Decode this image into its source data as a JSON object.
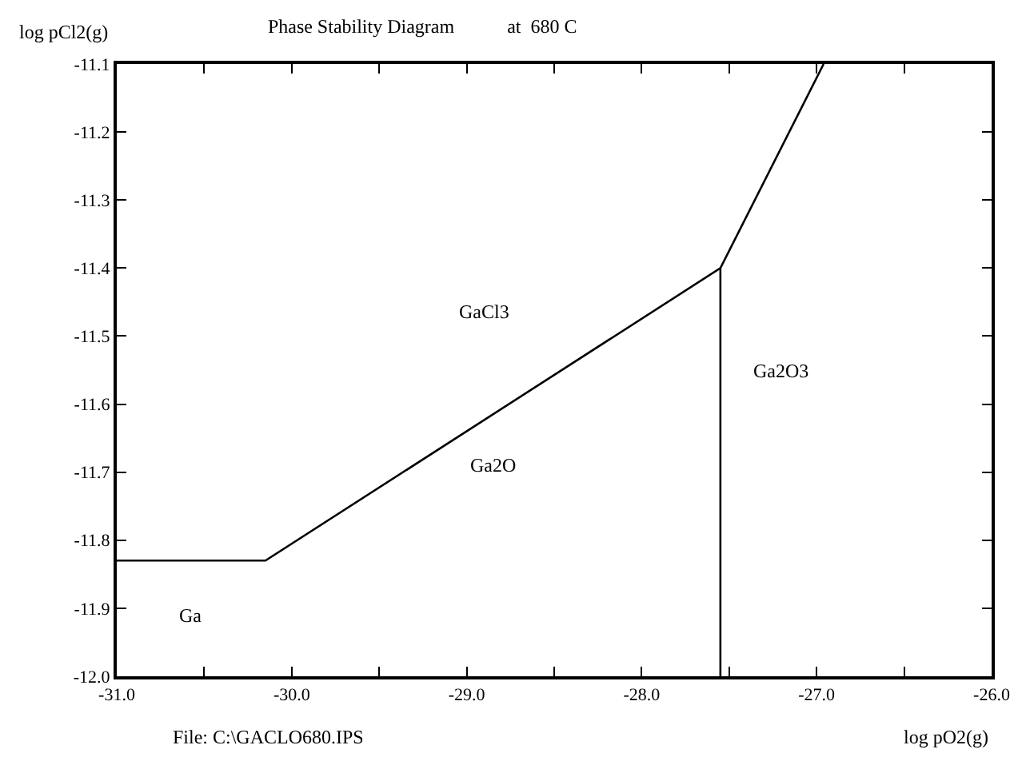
{
  "chart_data": {
    "type": "line",
    "title": "Phase Stability Diagram           at  680 C",
    "xlabel": "log pO2(g)",
    "ylabel": "log pCl2(g)",
    "series": [
      {
        "color": "#000000",
        "x": [
          -31.0,
          -30.15,
          -27.55,
          -26.96
        ],
        "values": [
          -11.83,
          -11.83,
          -11.4,
          -11.1
        ]
      },
      {
        "color": "#000000",
        "x": [
          -27.55,
          -27.55
        ],
        "values": [
          -11.4,
          -12.0
        ]
      }
    ],
    "xlim": [
      -31.0,
      -26.0
    ],
    "xticks": [
      {
        "value": -31.0,
        "label": "-31.0"
      },
      {
        "value": -30.5,
        "label": null
      },
      {
        "value": -30.0,
        "label": "-30.0"
      },
      {
        "value": -29.5,
        "label": null
      },
      {
        "value": -29.0,
        "label": "-29.0"
      },
      {
        "value": -28.5,
        "label": null
      },
      {
        "value": -28.0,
        "label": "-28.0"
      },
      {
        "value": -27.5,
        "label": null
      },
      {
        "value": -27.0,
        "label": "-27.0"
      },
      {
        "value": -26.5,
        "label": null
      },
      {
        "value": -26.0,
        "label": "-26.0"
      }
    ],
    "ylim": [
      -12.0,
      -11.1
    ],
    "yticks": [
      {
        "value": -12.0,
        "label": "-12.0"
      },
      -11.9,
      -11.8,
      -11.7,
      -11.6,
      -11.5,
      -11.4,
      -11.3,
      -11.2,
      -11.1
    ],
    "annotations": [
      "GaCl3",
      "Ga2O3",
      "Ga2O",
      "Ga",
      "File: C:\\GACLO680.IPS"
    ],
    "marker": "none",
    "line_style": "solid"
  }
}
